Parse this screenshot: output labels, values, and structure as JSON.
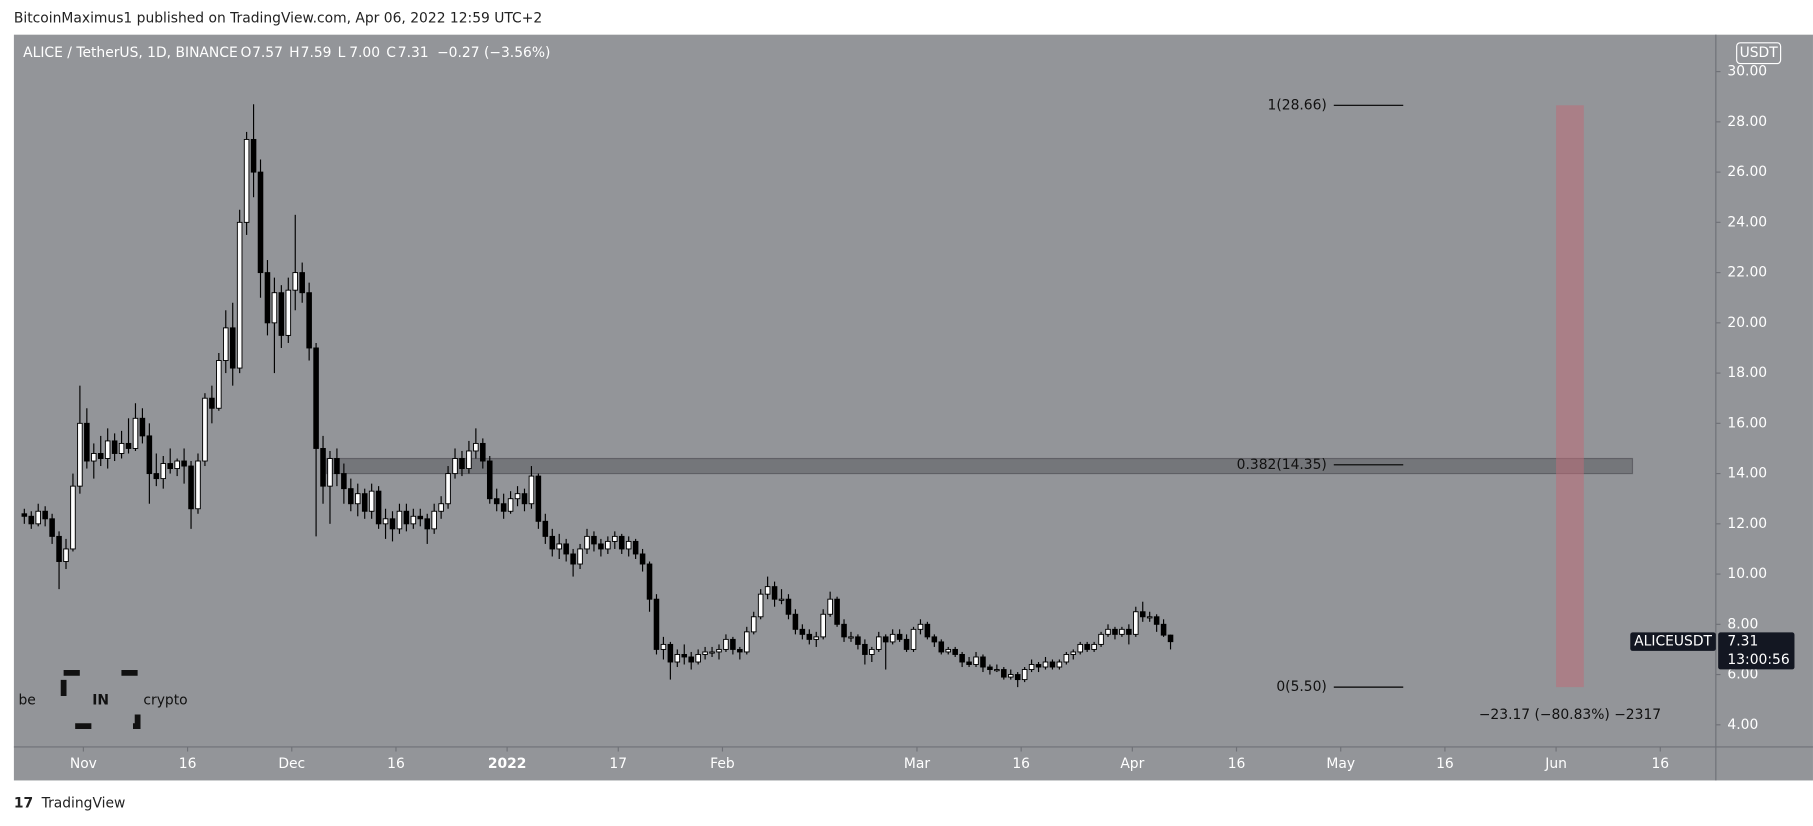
{
  "header": "BitcoinMaximus1 published on TradingView.com, Apr 06, 2022 12:59 UTC+2",
  "footer": "TradingView",
  "watermark": {
    "left": "be",
    "middle": "IN",
    "right": "crypto"
  },
  "chart_data": {
    "type": "candlestick",
    "symbol": "ALICE / TetherUS, 1D, BINANCE",
    "legend": [
      {
        "key": "O",
        "value": "7.57"
      },
      {
        "key": "H",
        "value": "7.59"
      },
      {
        "key": "L",
        "value": "7.00"
      },
      {
        "key": "C",
        "value": "7.31"
      }
    ],
    "change": "−0.27 (−3.56%)",
    "currency": "USDT",
    "price_tag": {
      "name": "ALICEUSDT",
      "price": "7.31",
      "countdown": "13:00:56"
    },
    "up_color": "#ffffff",
    "down_color": "#000000",
    "xlim": [
      "2021-10-22",
      "2022-06-24"
    ],
    "ylim": [
      3.12,
      31.47
    ],
    "yticks": [
      {
        "value": 4,
        "label": "4.00"
      },
      {
        "value": 6,
        "label": "6.00"
      },
      {
        "value": 8,
        "label": "8.00"
      },
      {
        "value": 10,
        "label": "10.00"
      },
      {
        "value": 12,
        "label": "12.00"
      },
      {
        "value": 14,
        "label": "14.00"
      },
      {
        "value": 16,
        "label": "16.00"
      },
      {
        "value": 18,
        "label": "18.00"
      },
      {
        "value": 20,
        "label": "20.00"
      },
      {
        "value": 22,
        "label": "22.00"
      },
      {
        "value": 24,
        "label": "24.00"
      },
      {
        "value": 26,
        "label": "26.00"
      },
      {
        "value": 28,
        "label": "28.00"
      },
      {
        "value": 30,
        "label": "30.00"
      }
    ],
    "xticks": [
      {
        "value": "2021-11-01",
        "label": "Nov"
      },
      {
        "value": "2021-11-16",
        "label": "16"
      },
      {
        "value": "2021-12-01",
        "label": "Dec"
      },
      {
        "value": "2021-12-16",
        "label": "16"
      },
      {
        "value": "2022-01-01",
        "label": "2022"
      },
      {
        "value": "2022-01-17",
        "label": "17"
      },
      {
        "value": "2022-02-01",
        "label": "Feb"
      },
      {
        "value": "2022-03-01",
        "label": "Mar"
      },
      {
        "value": "2022-03-16",
        "label": "16"
      },
      {
        "value": "2022-04-01",
        "label": "Apr"
      },
      {
        "value": "2022-04-16",
        "label": "16"
      },
      {
        "value": "2022-05-01",
        "label": "May"
      },
      {
        "value": "2022-05-16",
        "label": "16"
      },
      {
        "value": "2022-06-01",
        "label": "Jun"
      },
      {
        "value": "2022-06-16",
        "label": "16"
      }
    ],
    "fib_levels": [
      {
        "label": "1(28.66)",
        "value": 28.66,
        "x": [
          "2022-04-30",
          "2022-05-10"
        ]
      },
      {
        "label": "0.382(14.35)",
        "value": 14.35,
        "x": [
          "2022-04-30",
          "2022-05-10"
        ]
      },
      {
        "label": "0(5.50)",
        "value": 5.5,
        "x": [
          "2022-04-30",
          "2022-05-10"
        ]
      }
    ],
    "zone": {
      "x": [
        "2021-12-06",
        "2022-06-12"
      ],
      "y": [
        14.0,
        14.6
      ],
      "color": "rgba(60,60,65,0.35)"
    },
    "range": {
      "x": [
        "2022-06-01",
        "2022-06-05"
      ],
      "y": [
        5.5,
        28.66
      ],
      "color": "rgba(190,110,120,0.55)",
      "label": "−23.17 (−80.83%) −2317"
    },
    "x": [
      "2021-10-23",
      "2021-10-24",
      "2021-10-25",
      "2021-10-26",
      "2021-10-27",
      "2021-10-28",
      "2021-10-29",
      "2021-10-30",
      "2021-10-31",
      "2021-11-01",
      "2021-11-02",
      "2021-11-03",
      "2021-11-04",
      "2021-11-05",
      "2021-11-06",
      "2021-11-07",
      "2021-11-08",
      "2021-11-09",
      "2021-11-10",
      "2021-11-11",
      "2021-11-12",
      "2021-11-13",
      "2021-11-14",
      "2021-11-15",
      "2021-11-16",
      "2021-11-17",
      "2021-11-18",
      "2021-11-19",
      "2021-11-20",
      "2021-11-21",
      "2021-11-22",
      "2021-11-23",
      "2021-11-24",
      "2021-11-25",
      "2021-11-26",
      "2021-11-27",
      "2021-11-28",
      "2021-11-29",
      "2021-11-30",
      "2021-12-01",
      "2021-12-02",
      "2021-12-03",
      "2021-12-04",
      "2021-12-05",
      "2021-12-06",
      "2021-12-07",
      "2021-12-08",
      "2021-12-09",
      "2021-12-10",
      "2021-12-11",
      "2021-12-12",
      "2021-12-13",
      "2021-12-14",
      "2021-12-15",
      "2021-12-16",
      "2021-12-17",
      "2021-12-18",
      "2021-12-19",
      "2021-12-20",
      "2021-12-21",
      "2021-12-22",
      "2021-12-23",
      "2021-12-24",
      "2021-12-25",
      "2021-12-26",
      "2021-12-27",
      "2021-12-28",
      "2021-12-29",
      "2021-12-30",
      "2021-12-31",
      "2022-01-01",
      "2022-01-02",
      "2022-01-03",
      "2022-01-04",
      "2022-01-05",
      "2022-01-06",
      "2022-01-07",
      "2022-01-08",
      "2022-01-09",
      "2022-01-10",
      "2022-01-11",
      "2022-01-12",
      "2022-01-13",
      "2022-01-14",
      "2022-01-15",
      "2022-01-16",
      "2022-01-17",
      "2022-01-18",
      "2022-01-19",
      "2022-01-20",
      "2022-01-21",
      "2022-01-22",
      "2022-01-23",
      "2022-01-24",
      "2022-01-25",
      "2022-01-26",
      "2022-01-27",
      "2022-01-28",
      "2022-01-29",
      "2022-01-30",
      "2022-01-31",
      "2022-02-01",
      "2022-02-02",
      "2022-02-03",
      "2022-02-04",
      "2022-02-05",
      "2022-02-06",
      "2022-02-07",
      "2022-02-08",
      "2022-02-09",
      "2022-02-10",
      "2022-02-11",
      "2022-02-12",
      "2022-02-13",
      "2022-02-14",
      "2022-02-15",
      "2022-02-16",
      "2022-02-17",
      "2022-02-18",
      "2022-02-19",
      "2022-02-20",
      "2022-02-21",
      "2022-02-22",
      "2022-02-23",
      "2022-02-24",
      "2022-02-25",
      "2022-02-26",
      "2022-02-27",
      "2022-02-28",
      "2022-03-01",
      "2022-03-02",
      "2022-03-03",
      "2022-03-04",
      "2022-03-05",
      "2022-03-06",
      "2022-03-07",
      "2022-03-08",
      "2022-03-09",
      "2022-03-10",
      "2022-03-11",
      "2022-03-12",
      "2022-03-13",
      "2022-03-14",
      "2022-03-15",
      "2022-03-16",
      "2022-03-17",
      "2022-03-18",
      "2022-03-19",
      "2022-03-20",
      "2022-03-21",
      "2022-03-22",
      "2022-03-23",
      "2022-03-24",
      "2022-03-25",
      "2022-03-26",
      "2022-03-27",
      "2022-03-28",
      "2022-03-29",
      "2022-03-30",
      "2022-03-31",
      "2022-04-01",
      "2022-04-02",
      "2022-04-03",
      "2022-04-04",
      "2022-04-05",
      "2022-04-06"
    ],
    "ohlc": [
      [
        12.4,
        12.6,
        12.0,
        12.3
      ],
      [
        12.3,
        12.5,
        11.8,
        12.0
      ],
      [
        12.0,
        12.8,
        11.9,
        12.5
      ],
      [
        12.5,
        12.7,
        11.9,
        12.2
      ],
      [
        12.2,
        12.4,
        11.2,
        11.5
      ],
      [
        11.5,
        11.7,
        9.4,
        10.5
      ],
      [
        10.5,
        11.4,
        10.2,
        11.0
      ],
      [
        11.0,
        14.0,
        10.9,
        13.5
      ],
      [
        13.5,
        17.5,
        13.2,
        16.0
      ],
      [
        16.0,
        16.6,
        14.2,
        14.5
      ],
      [
        14.5,
        15.2,
        13.8,
        14.8
      ],
      [
        14.8,
        15.5,
        14.3,
        14.6
      ],
      [
        14.6,
        15.8,
        14.2,
        15.3
      ],
      [
        15.3,
        15.6,
        14.5,
        14.8
      ],
      [
        14.8,
        15.7,
        14.6,
        15.2
      ],
      [
        15.2,
        16.2,
        14.8,
        15.0
      ],
      [
        15.0,
        16.8,
        14.9,
        16.2
      ],
      [
        16.2,
        16.6,
        15.2,
        15.5
      ],
      [
        15.5,
        16.0,
        12.8,
        14.0
      ],
      [
        14.0,
        14.8,
        13.5,
        13.8
      ],
      [
        13.8,
        14.7,
        13.4,
        14.4
      ],
      [
        14.4,
        15.0,
        14.0,
        14.2
      ],
      [
        14.2,
        14.6,
        13.9,
        14.5
      ],
      [
        14.5,
        15.0,
        13.6,
        14.3
      ],
      [
        14.3,
        14.5,
        11.8,
        12.6
      ],
      [
        12.6,
        14.8,
        12.4,
        14.5
      ],
      [
        14.5,
        17.2,
        14.3,
        17.0
      ],
      [
        17.0,
        17.5,
        16.0,
        16.6
      ],
      [
        16.6,
        18.8,
        16.5,
        18.5
      ],
      [
        18.5,
        20.5,
        18.0,
        19.8
      ],
      [
        19.8,
        20.8,
        17.5,
        18.2
      ],
      [
        18.2,
        24.5,
        18.0,
        24.0
      ],
      [
        24.0,
        27.6,
        23.5,
        27.3
      ],
      [
        27.3,
        28.7,
        25.0,
        26.0
      ],
      [
        26.0,
        26.5,
        21.0,
        22.0
      ],
      [
        22.0,
        22.5,
        19.5,
        20.0
      ],
      [
        20.0,
        21.8,
        18.0,
        21.2
      ],
      [
        21.2,
        21.5,
        19.0,
        19.5
      ],
      [
        19.5,
        21.8,
        19.2,
        21.3
      ],
      [
        21.3,
        24.3,
        20.5,
        22.0
      ],
      [
        22.0,
        22.4,
        20.8,
        21.2
      ],
      [
        21.2,
        21.6,
        18.5,
        19.0
      ],
      [
        19.0,
        19.2,
        11.5,
        15.0
      ],
      [
        15.0,
        15.5,
        12.8,
        13.5
      ],
      [
        13.5,
        14.9,
        12.0,
        14.6
      ],
      [
        14.6,
        15.0,
        13.5,
        14.0
      ],
      [
        14.0,
        14.4,
        12.8,
        13.4
      ],
      [
        13.4,
        13.8,
        12.5,
        12.8
      ],
      [
        12.8,
        13.6,
        12.3,
        13.2
      ],
      [
        13.2,
        13.4,
        12.2,
        12.5
      ],
      [
        12.5,
        13.6,
        12.2,
        13.3
      ],
      [
        13.3,
        13.5,
        11.8,
        12.0
      ],
      [
        12.0,
        12.6,
        11.4,
        12.2
      ],
      [
        12.2,
        12.5,
        11.3,
        11.8
      ],
      [
        11.8,
        12.8,
        11.6,
        12.5
      ],
      [
        12.5,
        12.8,
        11.7,
        12.0
      ],
      [
        12.0,
        12.6,
        11.8,
        12.3
      ],
      [
        12.3,
        12.6,
        11.9,
        12.2
      ],
      [
        12.2,
        12.4,
        11.2,
        11.8
      ],
      [
        11.8,
        12.8,
        11.6,
        12.5
      ],
      [
        12.5,
        13.1,
        12.2,
        12.8
      ],
      [
        12.8,
        14.3,
        12.6,
        14.0
      ],
      [
        14.0,
        15.0,
        13.8,
        14.6
      ],
      [
        14.6,
        14.9,
        13.9,
        14.2
      ],
      [
        14.2,
        15.3,
        14.0,
        14.9
      ],
      [
        14.9,
        15.8,
        14.6,
        15.2
      ],
      [
        15.2,
        15.4,
        14.2,
        14.5
      ],
      [
        14.5,
        14.7,
        12.8,
        13.0
      ],
      [
        13.0,
        13.4,
        12.5,
        12.8
      ],
      [
        12.8,
        13.2,
        12.2,
        12.5
      ],
      [
        12.5,
        13.3,
        12.4,
        13.0
      ],
      [
        13.0,
        13.5,
        12.7,
        13.2
      ],
      [
        13.2,
        13.4,
        12.5,
        12.8
      ],
      [
        12.8,
        14.3,
        12.6,
        13.9
      ],
      [
        13.9,
        14.0,
        11.8,
        12.1
      ],
      [
        12.1,
        12.4,
        11.2,
        11.5
      ],
      [
        11.5,
        11.8,
        10.7,
        11.0
      ],
      [
        11.0,
        11.6,
        10.6,
        11.2
      ],
      [
        11.2,
        11.4,
        10.5,
        10.8
      ],
      [
        10.8,
        11.0,
        9.9,
        10.4
      ],
      [
        10.4,
        11.2,
        10.2,
        11.0
      ],
      [
        11.0,
        11.8,
        10.8,
        11.5
      ],
      [
        11.5,
        11.7,
        10.9,
        11.2
      ],
      [
        11.2,
        11.4,
        10.7,
        11.0
      ],
      [
        11.0,
        11.5,
        10.8,
        11.3
      ],
      [
        11.3,
        11.7,
        11.0,
        11.5
      ],
      [
        11.5,
        11.6,
        10.8,
        11.0
      ],
      [
        11.0,
        11.5,
        10.7,
        11.3
      ],
      [
        11.3,
        11.4,
        10.6,
        10.8
      ],
      [
        10.8,
        11.0,
        10.1,
        10.4
      ],
      [
        10.4,
        10.5,
        8.5,
        9.0
      ],
      [
        9.0,
        9.2,
        6.8,
        7.0
      ],
      [
        7.0,
        7.5,
        6.6,
        7.2
      ],
      [
        7.2,
        7.3,
        5.8,
        6.5
      ],
      [
        6.5,
        7.0,
        6.3,
        6.8
      ],
      [
        6.8,
        7.2,
        6.4,
        6.7
      ],
      [
        6.7,
        6.9,
        6.2,
        6.5
      ],
      [
        6.5,
        7.0,
        6.4,
        6.8
      ],
      [
        6.8,
        7.1,
        6.6,
        6.9
      ],
      [
        6.9,
        7.1,
        6.7,
        6.9
      ],
      [
        6.9,
        7.2,
        6.6,
        7.0
      ],
      [
        7.0,
        7.6,
        6.9,
        7.4
      ],
      [
        7.4,
        7.5,
        6.8,
        7.0
      ],
      [
        7.0,
        7.1,
        6.6,
        6.9
      ],
      [
        6.9,
        7.9,
        6.8,
        7.7
      ],
      [
        7.7,
        8.5,
        7.6,
        8.3
      ],
      [
        8.3,
        9.4,
        8.2,
        9.2
      ],
      [
        9.2,
        9.9,
        9.0,
        9.5
      ],
      [
        9.5,
        9.7,
        8.7,
        9.0
      ],
      [
        9.0,
        9.4,
        8.8,
        9.0
      ],
      [
        9.0,
        9.2,
        8.2,
        8.4
      ],
      [
        8.4,
        8.6,
        7.6,
        7.8
      ],
      [
        7.8,
        8.0,
        7.4,
        7.6
      ],
      [
        7.6,
        7.8,
        7.2,
        7.4
      ],
      [
        7.4,
        7.7,
        7.1,
        7.5
      ],
      [
        7.5,
        8.6,
        7.4,
        8.4
      ],
      [
        8.4,
        9.3,
        8.3,
        9.0
      ],
      [
        9.0,
        9.1,
        7.9,
        8.0
      ],
      [
        8.0,
        8.2,
        7.3,
        7.5
      ],
      [
        7.5,
        7.7,
        7.3,
        7.5
      ],
      [
        7.5,
        7.6,
        7.0,
        7.2
      ],
      [
        7.2,
        7.4,
        6.4,
        6.8
      ],
      [
        6.8,
        7.1,
        6.5,
        7.0
      ],
      [
        7.0,
        7.7,
        6.9,
        7.5
      ],
      [
        7.5,
        7.6,
        6.2,
        7.3
      ],
      [
        7.3,
        7.8,
        7.2,
        7.6
      ],
      [
        7.6,
        7.8,
        7.3,
        7.4
      ],
      [
        7.4,
        7.6,
        6.9,
        7.0
      ],
      [
        7.0,
        7.9,
        6.9,
        7.8
      ],
      [
        7.8,
        8.2,
        7.6,
        8.0
      ],
      [
        8.0,
        8.1,
        7.4,
        7.5
      ],
      [
        7.5,
        7.6,
        7.1,
        7.3
      ],
      [
        7.3,
        7.4,
        6.8,
        6.9
      ],
      [
        6.9,
        7.1,
        6.8,
        7.0
      ],
      [
        7.0,
        7.1,
        6.7,
        6.8
      ],
      [
        6.8,
        6.9,
        6.3,
        6.5
      ],
      [
        6.5,
        6.7,
        6.3,
        6.4
      ],
      [
        6.4,
        6.9,
        6.3,
        6.7
      ],
      [
        6.7,
        6.8,
        6.1,
        6.3
      ],
      [
        6.3,
        6.4,
        6.0,
        6.2
      ],
      [
        6.2,
        6.4,
        6.1,
        6.2
      ],
      [
        6.2,
        6.3,
        5.8,
        5.9
      ],
      [
        5.9,
        6.2,
        5.8,
        6.0
      ],
      [
        6.0,
        6.1,
        5.5,
        5.8
      ],
      [
        5.8,
        6.3,
        5.7,
        6.2
      ],
      [
        6.2,
        6.6,
        6.1,
        6.4
      ],
      [
        6.4,
        6.5,
        6.1,
        6.3
      ],
      [
        6.3,
        6.7,
        6.2,
        6.5
      ],
      [
        6.5,
        6.6,
        6.2,
        6.3
      ],
      [
        6.3,
        6.6,
        6.2,
        6.5
      ],
      [
        6.5,
        6.9,
        6.4,
        6.8
      ],
      [
        6.8,
        7.0,
        6.6,
        6.9
      ],
      [
        6.9,
        7.3,
        6.8,
        7.2
      ],
      [
        7.2,
        7.3,
        6.9,
        7.0
      ],
      [
        7.0,
        7.3,
        6.9,
        7.2
      ],
      [
        7.2,
        7.7,
        7.1,
        7.6
      ],
      [
        7.6,
        8.0,
        7.5,
        7.8
      ],
      [
        7.8,
        7.9,
        7.4,
        7.6
      ],
      [
        7.6,
        7.9,
        7.5,
        7.8
      ],
      [
        7.8,
        8.0,
        7.2,
        7.6
      ],
      [
        7.6,
        8.7,
        7.5,
        8.5
      ],
      [
        8.5,
        8.9,
        8.1,
        8.3
      ],
      [
        8.3,
        8.5,
        8.1,
        8.3
      ],
      [
        8.3,
        8.4,
        7.7,
        8.0
      ],
      [
        8.0,
        8.2,
        7.5,
        7.57
      ],
      [
        7.57,
        7.59,
        7.0,
        7.31
      ]
    ]
  }
}
